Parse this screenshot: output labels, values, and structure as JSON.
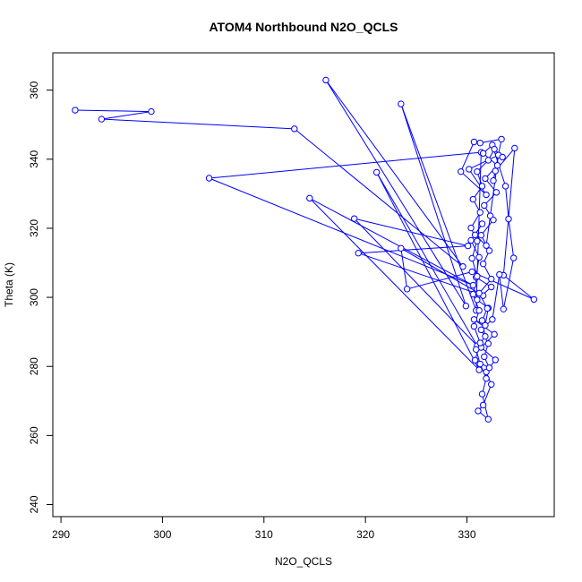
{
  "chart_data": {
    "type": "line",
    "title": "ATOM4 Northbound N2O_QCLS",
    "xlabel": "N2O_QCLS",
    "ylabel": "Theta (K)",
    "xlim": [
      289.2,
      338.6
    ],
    "ylim": [
      236.5,
      370.8
    ],
    "xticks": [
      290,
      300,
      310,
      320,
      330
    ],
    "yticks": [
      240,
      260,
      280,
      300,
      320,
      340,
      360
    ],
    "grid": false,
    "colors": {
      "series": "#0000ff",
      "axis": "#000000"
    },
    "series": [
      {
        "marker": "open-circle",
        "points": [
          [
            291.4,
            354.2
          ],
          [
            298.9,
            353.8
          ],
          [
            294.0,
            351.6
          ],
          [
            313.0,
            348.8
          ],
          [
            329.6,
            308.9
          ],
          [
            316.1,
            362.9
          ],
          [
            329.9,
            297.5
          ],
          [
            323.5,
            356.0
          ],
          [
            330.9,
            296.2
          ],
          [
            331.4,
            342.0
          ],
          [
            304.6,
            334.5
          ],
          [
            330.6,
            303.5
          ],
          [
            314.5,
            328.7
          ],
          [
            331.2,
            279.0
          ],
          [
            321.1,
            336.2
          ],
          [
            331.0,
            286.0
          ],
          [
            318.9,
            322.8
          ],
          [
            330.1,
            314.9
          ],
          [
            319.3,
            312.8
          ],
          [
            331.6,
            300.5
          ],
          [
            323.5,
            314.2
          ],
          [
            324.1,
            302.4
          ],
          [
            330.5,
            307.4
          ],
          [
            336.6,
            299.4
          ],
          [
            333.6,
            306.4
          ],
          [
            334.7,
            343.2
          ],
          [
            332.8,
            336.6
          ],
          [
            332.6,
            333.8
          ],
          [
            333.4,
            345.8
          ],
          [
            331.3,
            344.7
          ],
          [
            330.7,
            345.0
          ],
          [
            329.4,
            336.4
          ],
          [
            331.9,
            329.7
          ],
          [
            330.2,
            337.1
          ],
          [
            333.1,
            341.2
          ],
          [
            332.3,
            323.6
          ],
          [
            331.9,
            315.0
          ],
          [
            330.8,
            318.1
          ],
          [
            331.5,
            321.3
          ],
          [
            330.4,
            316.5
          ],
          [
            331.2,
            311.6
          ],
          [
            330.9,
            305.8
          ],
          [
            332.4,
            303.0
          ],
          [
            331.0,
            299.3
          ],
          [
            332.1,
            296.9
          ],
          [
            331.8,
            291.9
          ],
          [
            330.7,
            293.6
          ],
          [
            332.7,
            289.3
          ],
          [
            331.4,
            285.5
          ],
          [
            332.8,
            281.9
          ],
          [
            331.9,
            278.4
          ],
          [
            332.4,
            274.8
          ],
          [
            331.6,
            268.8
          ],
          [
            331.1,
            267.1
          ],
          [
            332.1,
            264.7
          ],
          [
            331.5,
            272.0
          ],
          [
            331.9,
            276.5
          ],
          [
            331.3,
            280.7
          ],
          [
            330.9,
            284.9
          ],
          [
            331.8,
            288.7
          ],
          [
            331.5,
            293.3
          ],
          [
            332.0,
            296.8
          ],
          [
            331.2,
            301.2
          ],
          [
            332.4,
            305.3
          ],
          [
            331.6,
            309.7
          ],
          [
            332.2,
            313.5
          ],
          [
            331.4,
            318.0
          ],
          [
            332.6,
            322.4
          ],
          [
            331.7,
            326.6
          ],
          [
            332.9,
            330.4
          ],
          [
            331.8,
            334.4
          ],
          [
            333.0,
            338.2
          ],
          [
            331.6,
            341.7
          ],
          [
            332.5,
            344.1
          ],
          [
            333.8,
            332.2
          ],
          [
            334.1,
            322.7
          ],
          [
            334.6,
            311.4
          ],
          [
            333.6,
            296.6
          ],
          [
            333.2,
            306.6
          ],
          [
            332.5,
            293.6
          ],
          [
            331.4,
            290.6
          ],
          [
            332.1,
            286.6
          ],
          [
            331.7,
            282.8
          ],
          [
            332.2,
            279.6
          ],
          [
            330.8,
            281.8
          ],
          [
            331.3,
            286.8
          ],
          [
            330.7,
            291.6
          ],
          [
            331.2,
            296.2
          ],
          [
            330.6,
            300.9
          ],
          [
            331.0,
            306.1
          ],
          [
            330.5,
            311.3
          ],
          [
            331.0,
            316.3
          ],
          [
            330.4,
            320.1
          ],
          [
            331.3,
            324.6
          ],
          [
            330.6,
            328.4
          ],
          [
            331.5,
            332.2
          ],
          [
            331.0,
            336.4
          ],
          [
            332.1,
            339.7
          ],
          [
            332.7,
            342.9
          ],
          [
            333.5,
            340.6
          ]
        ]
      }
    ]
  }
}
